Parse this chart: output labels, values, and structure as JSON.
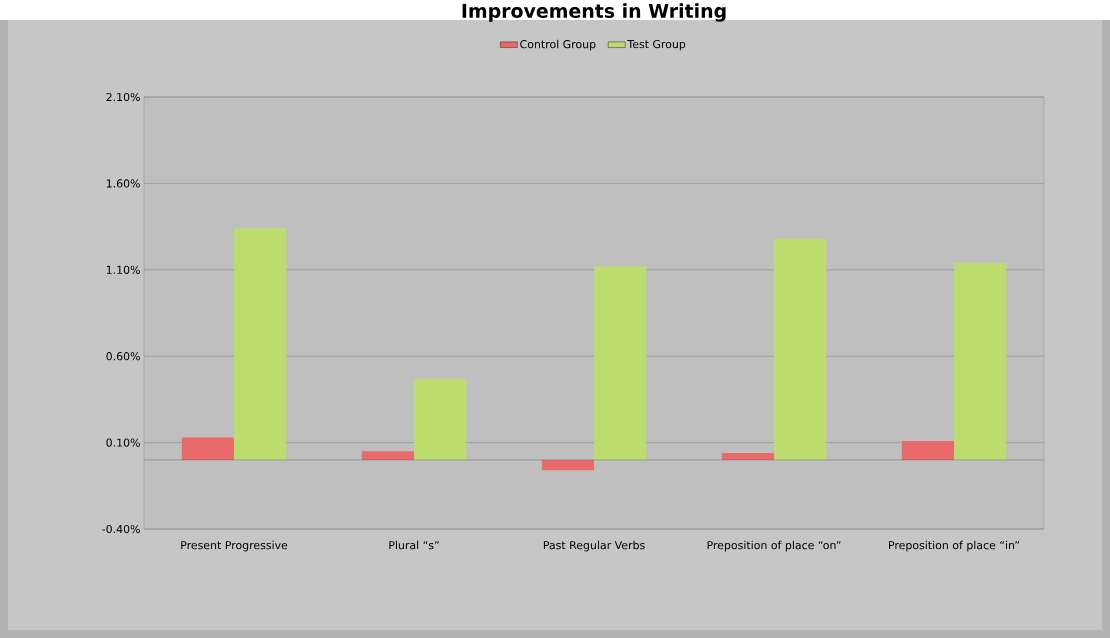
{
  "chart_data": {
    "type": "bar",
    "title": "Improvements in Writing",
    "categories": [
      "Present Progressive",
      "Plural “s”",
      "Past Regular Verbs",
      "Preposition of place “on”",
      "Preposition of place “in”"
    ],
    "series": [
      {
        "name": "Control Group",
        "color": "#e86a6a",
        "values": [
          0.13,
          0.05,
          -0.06,
          0.04,
          0.11
        ]
      },
      {
        "name": "Test Group",
        "color": "#bcdc6e",
        "values": [
          1.34,
          0.47,
          1.12,
          1.28,
          1.14
        ]
      }
    ],
    "ylim": [
      -0.4,
      2.1
    ],
    "yticks": [
      {
        "value": -0.4,
        "label": "-0.40%"
      },
      {
        "value": 0.1,
        "label": "0.10%"
      },
      {
        "value": 0.6,
        "label": "0.60%"
      },
      {
        "value": 1.1,
        "label": "1.10%"
      },
      {
        "value": 1.6,
        "label": "1.60%"
      },
      {
        "value": 2.1,
        "label": "2.10%"
      }
    ],
    "grid": "y",
    "legend": "top"
  }
}
